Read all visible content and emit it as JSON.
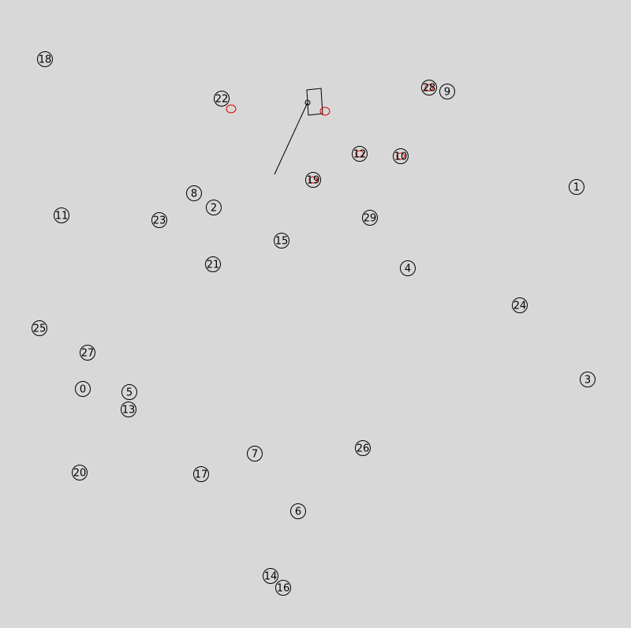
{
  "scene": {
    "background": "#d8d8d8",
    "stroke_color": "#000000",
    "marker_color": "#e00000",
    "robot": {
      "heading": "toward lower-left"
    },
    "nodes": [
      {
        "id": "0"
      },
      {
        "id": "1"
      },
      {
        "id": "2"
      },
      {
        "id": "3"
      },
      {
        "id": "4"
      },
      {
        "id": "5"
      },
      {
        "id": "6"
      },
      {
        "id": "7"
      },
      {
        "id": "8"
      },
      {
        "id": "9"
      },
      {
        "id": "10",
        "marked": true
      },
      {
        "id": "11"
      },
      {
        "id": "12",
        "marked": true
      },
      {
        "id": "13"
      },
      {
        "id": "14"
      },
      {
        "id": "15"
      },
      {
        "id": "16"
      },
      {
        "id": "17"
      },
      {
        "id": "18"
      },
      {
        "id": "19",
        "marked": true
      },
      {
        "id": "20"
      },
      {
        "id": "21"
      },
      {
        "id": "22"
      },
      {
        "id": "23"
      },
      {
        "id": "24"
      },
      {
        "id": "25"
      },
      {
        "id": "26"
      },
      {
        "id": "27"
      },
      {
        "id": "28",
        "marked": true
      },
      {
        "id": "29"
      }
    ],
    "red_markers": [
      {
        "name": "near-22"
      },
      {
        "name": "near-robot"
      }
    ]
  }
}
